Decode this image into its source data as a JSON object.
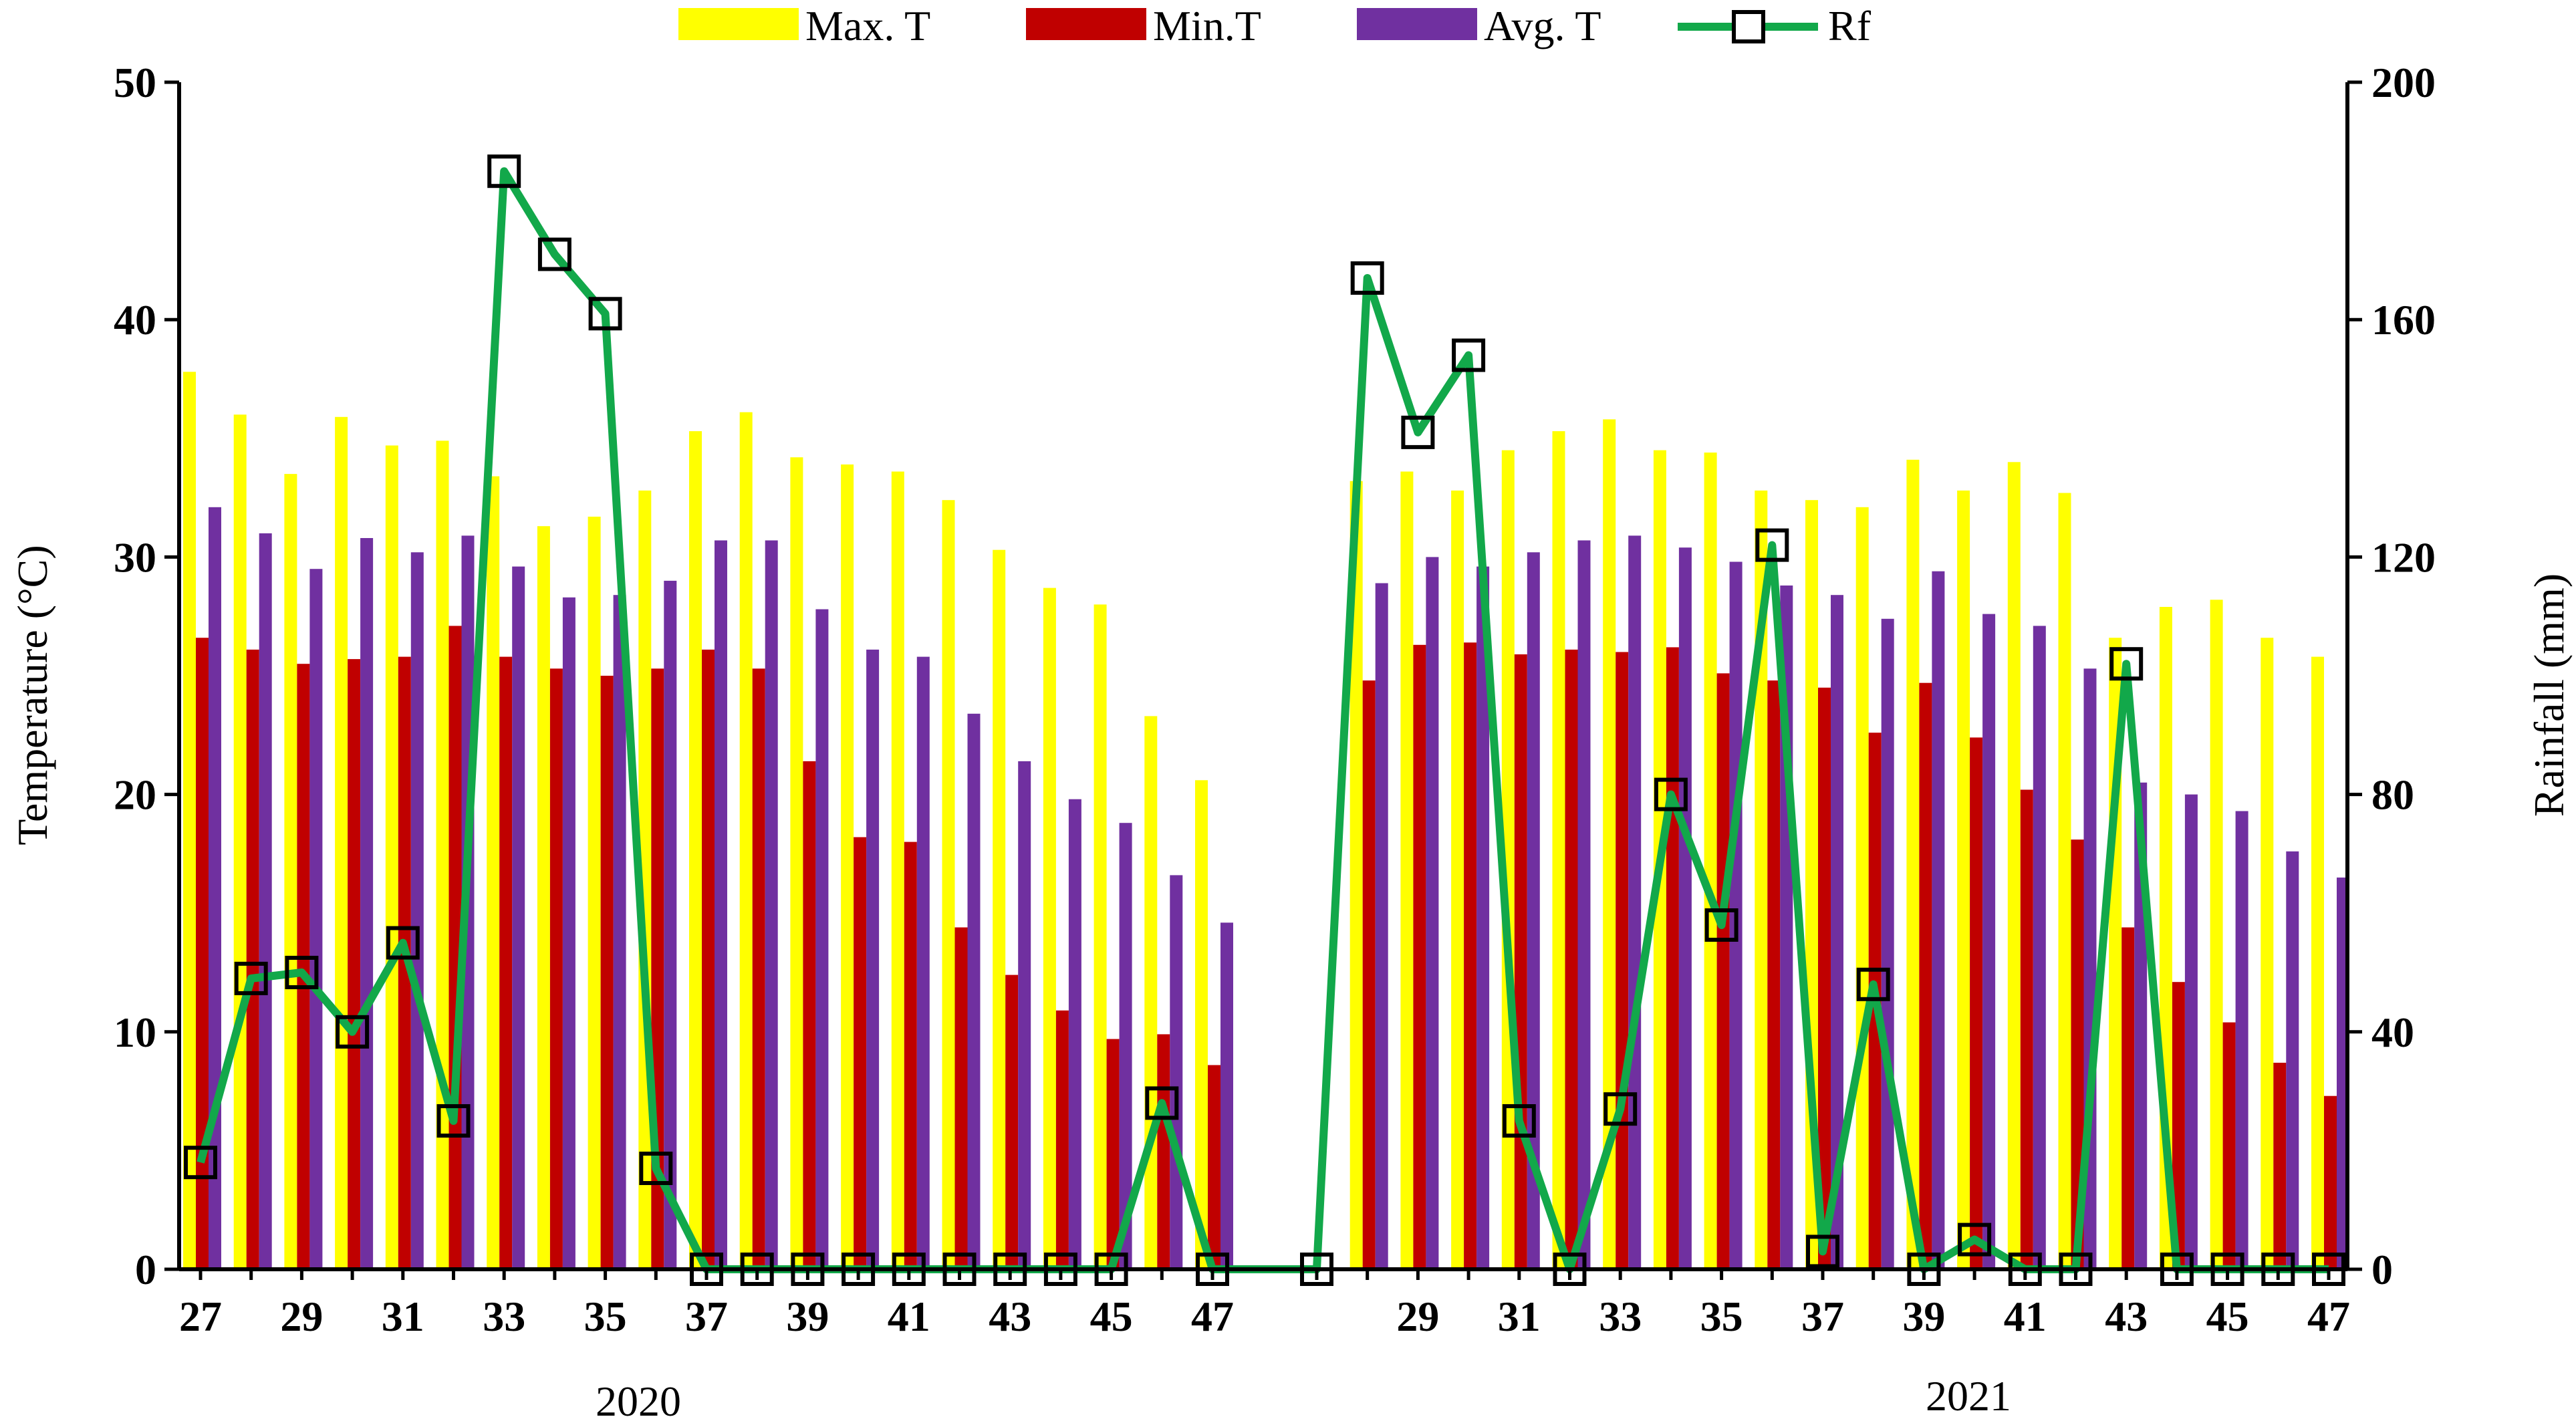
{
  "chart_data": {
    "type": "bar",
    "ylabel_left": "Temperature (°C)",
    "ylabel_right": "Rainfall (mm)",
    "ylim_left": [
      0,
      50
    ],
    "ylim_right": [
      0,
      200
    ],
    "yticks_left": [
      0,
      10,
      20,
      30,
      40,
      50
    ],
    "yticks_right": [
      0,
      40,
      80,
      120,
      160,
      200
    ],
    "grid": false,
    "legend_position": "top-center",
    "colors": {
      "Max. T": "#ffff00",
      "Min.T": "#c00000",
      "Avg. T": "#7030a0",
      "Rf": "#12a84a"
    },
    "series": [
      {
        "name": "Max. T",
        "type": "bar"
      },
      {
        "name": "Min.T",
        "type": "bar"
      },
      {
        "name": "Avg. T",
        "type": "bar"
      },
      {
        "name": "Rf",
        "type": "line",
        "axis": "right",
        "marker": "square"
      }
    ],
    "groups": [
      {
        "year": "2020",
        "weeks": [
          27,
          28,
          29,
          30,
          31,
          32,
          33,
          34,
          35,
          36,
          37,
          38,
          39,
          40,
          41,
          42,
          43,
          44,
          45,
          46,
          47
        ],
        "tick_labels": [
          "27",
          "29",
          "31",
          "33",
          "35",
          "37",
          "39",
          "41",
          "43",
          "45",
          "47"
        ],
        "max_t": [
          37.8,
          36.0,
          33.5,
          35.9,
          34.7,
          34.9,
          33.4,
          31.3,
          31.7,
          32.8,
          35.3,
          36.1,
          34.2,
          33.9,
          33.6,
          32.4,
          30.3,
          28.7,
          28.0,
          23.3,
          20.6
        ],
        "min_t": [
          26.6,
          26.1,
          25.5,
          25.7,
          25.8,
          27.1,
          25.8,
          25.3,
          25.0,
          25.3,
          26.1,
          25.3,
          21.4,
          18.2,
          18.0,
          14.4,
          12.4,
          10.9,
          9.7,
          9.9,
          8.6
        ],
        "avg_t": [
          32.1,
          31.0,
          29.5,
          30.8,
          30.2,
          30.9,
          29.6,
          28.3,
          28.4,
          29.0,
          30.7,
          30.7,
          27.8,
          26.1,
          25.8,
          23.4,
          21.4,
          19.8,
          18.8,
          16.6,
          14.6
        ],
        "rf": [
          18,
          49,
          50,
          40,
          55,
          25,
          185,
          171,
          161,
          17,
          0,
          0,
          0,
          0,
          0,
          0,
          0,
          0,
          0,
          28,
          0
        ]
      },
      {
        "year": "2021",
        "weeks": [
          27,
          28,
          29,
          30,
          31,
          32,
          33,
          34,
          35,
          36,
          37,
          38,
          39,
          40,
          41,
          42,
          43,
          44,
          45,
          46,
          47
        ],
        "tick_labels": [
          "29",
          "31",
          "33",
          "35",
          "37",
          "39",
          "41",
          "43",
          "45",
          "47"
        ],
        "max_t": [
          null,
          33.2,
          33.6,
          32.8,
          34.5,
          35.3,
          35.8,
          34.5,
          34.4,
          32.8,
          32.4,
          32.1,
          34.1,
          32.8,
          34.0,
          32.7,
          26.6,
          27.9,
          28.2,
          26.6,
          25.8
        ],
        "min_t": [
          null,
          24.8,
          26.3,
          26.4,
          25.9,
          26.1,
          26.0,
          26.2,
          25.1,
          24.8,
          24.5,
          22.6,
          24.7,
          22.4,
          20.2,
          18.1,
          14.4,
          12.1,
          10.4,
          8.7,
          7.3
        ],
        "avg_t": [
          null,
          28.9,
          30.0,
          29.6,
          30.2,
          30.7,
          30.9,
          30.4,
          29.8,
          28.8,
          28.4,
          27.4,
          29.4,
          27.6,
          27.1,
          25.3,
          20.5,
          20.0,
          19.3,
          17.6,
          16.5
        ],
        "rf": [
          0,
          167,
          141,
          154,
          25,
          0,
          27,
          80,
          58,
          122,
          3,
          48,
          0,
          5,
          0,
          0,
          102,
          0,
          0,
          0,
          0
        ]
      }
    ]
  }
}
